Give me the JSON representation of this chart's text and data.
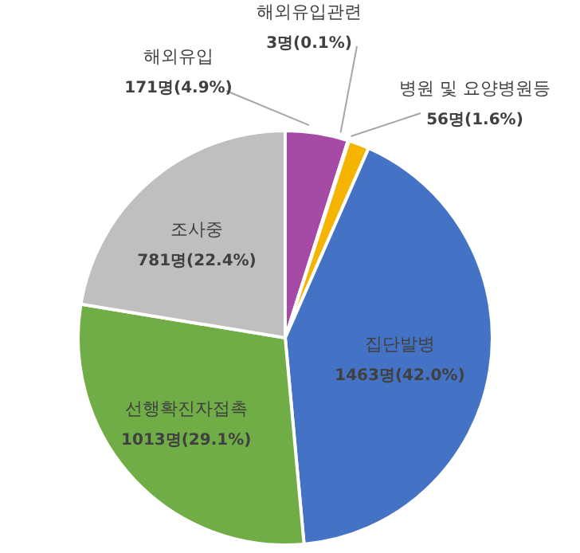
{
  "chart_data": {
    "type": "pie",
    "categories": [
      "해외유입",
      "해외유입관련",
      "병원 및 요양병원등",
      "집단발병",
      "선행확진자접촉",
      "조사중"
    ],
    "values": [
      171,
      3,
      56,
      1463,
      1013,
      781
    ],
    "value_labels": [
      "171명(4.9%)",
      "3명(0.1%)",
      "56명(1.6%)",
      "1463명(42.0%)",
      "1013명(29.1%)",
      "781명(22.4%)"
    ],
    "colors": [
      "#a54aa5",
      "#c0504d",
      "#f5b400",
      "#4472c4",
      "#70ad47",
      "#bfbfbf"
    ]
  }
}
